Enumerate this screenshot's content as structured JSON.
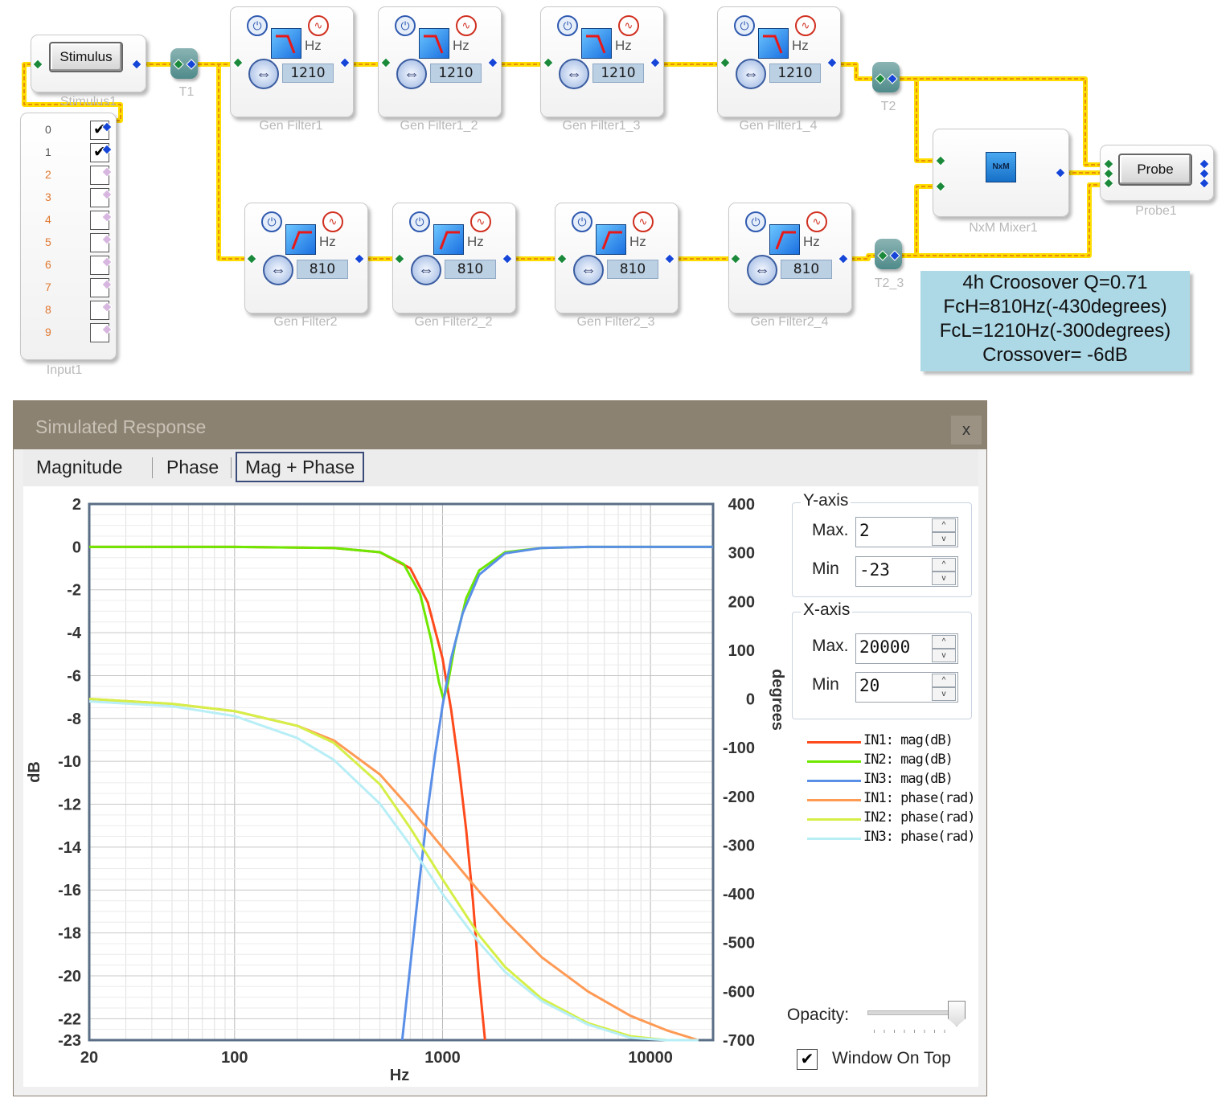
{
  "canvas": {
    "blocks": {
      "stimulus": {
        "name": "Stimulus1",
        "button": "Stimulus"
      },
      "t1": {
        "name": "T1"
      },
      "t2": {
        "name": "T2"
      },
      "t2_3": {
        "name": "T2_3"
      },
      "input": {
        "name": "Input1",
        "channels": [
          "0",
          "1",
          "2",
          "3",
          "4",
          "5",
          "6",
          "7",
          "8",
          "9"
        ],
        "checked": [
          true,
          true,
          false,
          false,
          false,
          false,
          false,
          false,
          false,
          false
        ]
      },
      "mixer": {
        "name": "NxM Mixer1",
        "icon_text": "NxM"
      },
      "probe": {
        "name": "Probe1",
        "button": "Probe"
      },
      "filters_top": [
        {
          "name": "Gen Filter1",
          "freq": "1210",
          "unit": "Hz"
        },
        {
          "name": "Gen Filter1_2",
          "freq": "1210",
          "unit": "Hz"
        },
        {
          "name": "Gen Filter1_3",
          "freq": "1210",
          "unit": "Hz"
        },
        {
          "name": "Gen Filter1_4",
          "freq": "1210",
          "unit": "Hz"
        }
      ],
      "filters_bottom": [
        {
          "name": "Gen Filter2",
          "freq": "810",
          "unit": "Hz"
        },
        {
          "name": "Gen Filter2_2",
          "freq": "810",
          "unit": "Hz"
        },
        {
          "name": "Gen Filter2_3",
          "freq": "810",
          "unit": "Hz"
        },
        {
          "name": "Gen Filter2_4",
          "freq": "810",
          "unit": "Hz"
        }
      ]
    },
    "annotation": [
      "4h Croosover Q=0.71",
      "FcH=810Hz(-430degrees)",
      "FcL=1210Hz(-300degrees)",
      "Crossover= -6dB"
    ],
    "colors": {
      "wire": "#ffd400",
      "wire_core": "#e88a00",
      "port_in": "#1a8a3a",
      "port_out": "#1646d8",
      "port_inactive": "#d7b6e0"
    }
  },
  "window": {
    "title": "Simulated Response",
    "close": "x",
    "tabs": [
      "Magnitude",
      "Phase",
      "Mag + Phase"
    ],
    "selected_tab": 2,
    "yaxis_group": {
      "legend": "Y-axis",
      "max_label": "Max.",
      "max_value": "2",
      "min_label": "Min",
      "min_value": "-23"
    },
    "xaxis_group": {
      "legend": "X-axis",
      "max_label": "Max.",
      "max_value": "20000",
      "min_label": "Min",
      "min_value": "20"
    },
    "opacity_label": "Opacity:",
    "opacity": 1.0,
    "window_on_top_label": "Window On Top",
    "window_on_top": true
  },
  "chart_data": {
    "type": "line",
    "xlabel": "Hz",
    "ylabel": "dB",
    "y2label": "degrees",
    "xscale": "log",
    "xlim": [
      20,
      20000
    ],
    "ylim": [
      -23,
      2
    ],
    "y2lim": [
      -700,
      400
    ],
    "x_ticks": [
      "20",
      "100",
      "1000",
      "10000"
    ],
    "y_ticks": [
      "2",
      "0",
      "-2",
      "-4",
      "-6",
      "-8",
      "-10",
      "-12",
      "-14",
      "-16",
      "-18",
      "-20",
      "-22",
      "-23"
    ],
    "y2_ticks": [
      "400",
      "300",
      "200",
      "100",
      "0",
      "-100",
      "-200",
      "-300",
      "-400",
      "-500",
      "-600",
      "-700"
    ],
    "grid": true,
    "legend_position": "right",
    "series": [
      {
        "name": "IN1: mag(dB)",
        "color": "#ff4a1c",
        "axis": "left",
        "x": [
          20,
          100,
          300,
          500,
          700,
          850,
          1000,
          1100,
          1200,
          1300,
          1400,
          1500,
          1600
        ],
        "y": [
          0,
          0,
          -0.05,
          -0.25,
          -1.0,
          -2.6,
          -5.2,
          -7.6,
          -10.3,
          -13.2,
          -16.5,
          -20.2,
          -23
        ]
      },
      {
        "name": "IN2: mag(dB)",
        "color": "#6ee800",
        "axis": "left",
        "x": [
          20,
          100,
          300,
          500,
          650,
          780,
          880,
          960,
          1010,
          1060,
          1150,
          1300,
          1500,
          2000,
          3000,
          5000,
          20000
        ],
        "y": [
          0,
          0,
          -0.05,
          -0.25,
          -0.8,
          -2.2,
          -4.3,
          -6.3,
          -7.1,
          -6.4,
          -4.5,
          -2.4,
          -1.1,
          -0.25,
          -0.05,
          0,
          0
        ]
      },
      {
        "name": "IN3: mag(dB)",
        "color": "#5a8fe8",
        "axis": "left",
        "x": [
          640,
          700,
          780,
          850,
          920,
          1000,
          1100,
          1250,
          1500,
          2000,
          3000,
          5000,
          20000
        ],
        "y": [
          -23,
          -19.5,
          -15.3,
          -12.2,
          -9.7,
          -7.4,
          -5.2,
          -3.1,
          -1.3,
          -0.3,
          -0.05,
          0,
          0
        ]
      },
      {
        "name": "IN1: phase(rad)",
        "color": "#ff9a55",
        "axis": "right",
        "x": [
          20,
          50,
          100,
          200,
          300,
          500,
          700,
          1000,
          1500,
          2000,
          3000,
          5000,
          8000,
          12000,
          17000
        ],
        "y": [
          0,
          -10,
          -25,
          -55,
          -85,
          -155,
          -225,
          -305,
          -395,
          -455,
          -530,
          -600,
          -650,
          -680,
          -700
        ]
      },
      {
        "name": "IN2: phase(rad)",
        "color": "#d6ef48",
        "axis": "right",
        "x": [
          20,
          50,
          100,
          200,
          300,
          500,
          700,
          1000,
          1500,
          2000,
          3000,
          5000,
          8000,
          12000,
          17000
        ],
        "y": [
          0,
          -10,
          -25,
          -55,
          -90,
          -175,
          -265,
          -370,
          -485,
          -550,
          -615,
          -665,
          -692,
          -700,
          -700
        ]
      },
      {
        "name": "IN3: phase(rad)",
        "color": "#b8eef6",
        "axis": "right",
        "x": [
          20,
          50,
          100,
          200,
          300,
          500,
          700,
          1000,
          1500,
          2000,
          3000,
          5000,
          8000,
          12000,
          17000
        ],
        "y": [
          -5,
          -15,
          -35,
          -80,
          -125,
          -215,
          -300,
          -400,
          -500,
          -560,
          -620,
          -668,
          -695,
          -700,
          -700
        ]
      }
    ]
  }
}
